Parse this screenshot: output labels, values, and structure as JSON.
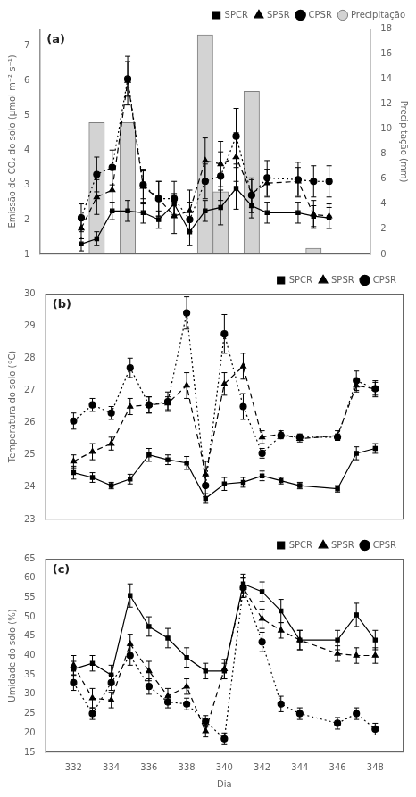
{
  "chart_data": [
    {
      "type": "line",
      "annotations": [
        "(a)"
      ],
      "ylabel": "Emissão de CO₂ do solo (μmol m⁻² s⁻¹)",
      "y2label": "Precipitação (mm)",
      "x": [
        332,
        333,
        334,
        335,
        336,
        337,
        338,
        339,
        340,
        341,
        342,
        343,
        344,
        346,
        347,
        348
      ],
      "xlim": [
        330.5,
        349.5
      ],
      "xticks": [
        332,
        334,
        336,
        338,
        340,
        342,
        344,
        346,
        348
      ],
      "ylim": [
        1,
        7.5
      ],
      "yticks": [
        1,
        2,
        3,
        4,
        5,
        6,
        7
      ],
      "y2lim": [
        0,
        18
      ],
      "y2ticks": [
        0,
        2,
        4,
        6,
        8,
        10,
        12,
        14,
        16,
        18
      ],
      "grid": false,
      "legend": "upper right",
      "tick_labels": "y",
      "series": [
        {
          "name": "SPCR",
          "color": "black",
          "marker": "square",
          "line_style": "solid",
          "values": [
            1.3,
            1.45,
            2.25,
            2.25,
            2.2,
            2.0,
            2.45,
            1.65,
            2.25,
            2.35,
            2.9,
            2.4,
            2.2,
            2.2,
            2.1,
            2.05
          ],
          "errors": [
            0.2,
            0.2,
            0.25,
            0.3,
            0.3,
            0.25,
            0.3,
            0.4,
            0.3,
            0.5,
            0.6,
            0.35,
            0.3,
            0.3,
            0.3,
            0.3
          ]
        },
        {
          "name": "SPSR",
          "color": "black",
          "marker": "triangle",
          "line_style": "dashed",
          "values": [
            1.75,
            2.65,
            2.85,
            6.0,
            2.95,
            2.6,
            2.1,
            2.25,
            3.7,
            3.6,
            3.8,
            2.75,
            3.05,
            3.1,
            2.15,
            2.1
          ],
          "errors": [
            0.3,
            0.5,
            0.6,
            0.7,
            0.5,
            0.5,
            0.5,
            0.6,
            0.65,
            0.65,
            0.7,
            0.4,
            0.4,
            0.4,
            0.4,
            0.35
          ]
        },
        {
          "name": "CPSR",
          "color": "black",
          "marker": "circle",
          "line_style": "dotted",
          "values": [
            2.05,
            3.3,
            3.5,
            6.05,
            3.0,
            2.6,
            2.6,
            2.0,
            3.1,
            3.25,
            4.4,
            2.7,
            3.2,
            3.15,
            3.1,
            3.1
          ],
          "errors": [
            0.4,
            0.5,
            0.5,
            0.5,
            0.4,
            0.5,
            0.5,
            0.5,
            0.5,
            0.7,
            0.8,
            0.5,
            0.5,
            0.5,
            0.45,
            0.45
          ]
        },
        {
          "name": "Precipitação",
          "type": "bar",
          "axis": "y2",
          "color": "lightgray",
          "x": [
            333,
            335,
            340,
            341,
            343,
            347
          ],
          "values": [
            10.5,
            10.5,
            17.5,
            5.0,
            13.0,
            0.5
          ]
        }
      ]
    },
    {
      "type": "line",
      "annotations": [
        "(b)"
      ],
      "ylabel": "Temperatura do solo (°C)",
      "x": [
        332,
        333,
        334,
        335,
        336,
        337,
        338,
        339,
        340,
        341,
        342,
        343,
        344,
        346,
        347,
        348
      ],
      "xlim": [
        330.5,
        349.5
      ],
      "xticks": [
        332,
        334,
        336,
        338,
        340,
        342,
        344,
        346,
        348
      ],
      "ylim": [
        23,
        30
      ],
      "yticks": [
        23,
        24,
        25,
        26,
        27,
        28,
        29,
        30
      ],
      "grid": false,
      "legend": "upper right",
      "tick_labels": "y",
      "series": [
        {
          "name": "SPCR",
          "color": "black",
          "marker": "square",
          "line_style": "solid",
          "values": [
            24.45,
            24.3,
            24.05,
            24.25,
            25.0,
            24.85,
            24.75,
            23.65,
            24.1,
            24.15,
            24.35,
            24.2,
            24.05,
            23.95,
            25.05,
            25.2
          ],
          "errors": [
            0.2,
            0.15,
            0.1,
            0.15,
            0.2,
            0.15,
            0.2,
            0.15,
            0.2,
            0.15,
            0.15,
            0.1,
            0.1,
            0.1,
            0.2,
            0.15
          ]
        },
        {
          "name": "SPSR",
          "color": "black",
          "marker": "triangle",
          "line_style": "dashed",
          "values": [
            24.8,
            25.1,
            25.35,
            26.5,
            26.55,
            26.6,
            27.15,
            24.4,
            27.2,
            27.75,
            25.55,
            25.65,
            25.5,
            25.6,
            27.15,
            27.05
          ],
          "errors": [
            0.2,
            0.25,
            0.2,
            0.25,
            0.25,
            0.2,
            0.4,
            0.4,
            0.35,
            0.4,
            0.2,
            0.1,
            0.1,
            0.15,
            0.2,
            0.2
          ]
        },
        {
          "name": "CPSR",
          "color": "black",
          "marker": "circle",
          "line_style": "dotted",
          "values": [
            26.05,
            26.55,
            26.3,
            27.7,
            26.55,
            26.65,
            29.4,
            24.05,
            28.75,
            26.5,
            25.05,
            25.6,
            25.55,
            25.55,
            27.3,
            27.05
          ],
          "errors": [
            0.25,
            0.2,
            0.2,
            0.3,
            0.25,
            0.3,
            0.5,
            0.35,
            0.6,
            0.4,
            0.15,
            0.1,
            0.1,
            0.1,
            0.3,
            0.25
          ]
        }
      ]
    },
    {
      "type": "line",
      "annotations": [
        "(c)"
      ],
      "ylabel": "Umidade do solo (%)",
      "xlabel": "Dia",
      "x": [
        332,
        333,
        334,
        335,
        336,
        337,
        338,
        339,
        340,
        341,
        342,
        343,
        344,
        346,
        347,
        348
      ],
      "xlim": [
        330.5,
        349.5
      ],
      "xticks": [
        332,
        334,
        336,
        338,
        340,
        342,
        344,
        346,
        348
      ],
      "ylim": [
        15,
        65
      ],
      "yticks": [
        15,
        20,
        25,
        30,
        35,
        40,
        45,
        50,
        55,
        60,
        65
      ],
      "grid": false,
      "legend": "upper right",
      "series": [
        {
          "name": "SPCR",
          "color": "black",
          "marker": "square",
          "line_style": "solid",
          "values": [
            36.5,
            38.0,
            35.0,
            55.5,
            47.5,
            44.5,
            39.5,
            36.0,
            36.0,
            58.5,
            56.5,
            51.5,
            44.0,
            44.0,
            50.5,
            44.0
          ],
          "errors": [
            2.0,
            2.0,
            2.5,
            3.0,
            2.5,
            2.5,
            2.5,
            2.0,
            2.0,
            2.5,
            2.5,
            3.0,
            2.5,
            2.5,
            3.0,
            2.5
          ]
        },
        {
          "name": "SPSR",
          "color": "black",
          "marker": "triangle",
          "line_style": "dashed",
          "values": [
            37.5,
            29.0,
            28.5,
            43.0,
            36.0,
            29.5,
            32.0,
            20.5,
            36.5,
            57.5,
            49.5,
            46.5,
            44.0,
            40.5,
            40.0,
            40.0
          ],
          "errors": [
            2.5,
            2.5,
            2.0,
            2.5,
            2.5,
            2.0,
            2.0,
            1.5,
            2.5,
            2.5,
            2.5,
            2.0,
            2.5,
            2.0,
            2.0,
            2.0
          ]
        },
        {
          "name": "CPSR",
          "color": "black",
          "marker": "circle",
          "line_style": "dotted",
          "values": [
            33.0,
            25.0,
            33.0,
            40.0,
            32.0,
            28.0,
            27.5,
            23.0,
            18.5,
            57.5,
            43.5,
            27.5,
            25.0,
            22.5,
            25.0,
            21.0
          ],
          "errors": [
            2.0,
            1.5,
            2.0,
            2.5,
            2.0,
            1.5,
            1.5,
            1.5,
            1.5,
            2.5,
            2.5,
            2.0,
            1.5,
            1.5,
            1.5,
            1.5
          ]
        }
      ]
    }
  ]
}
